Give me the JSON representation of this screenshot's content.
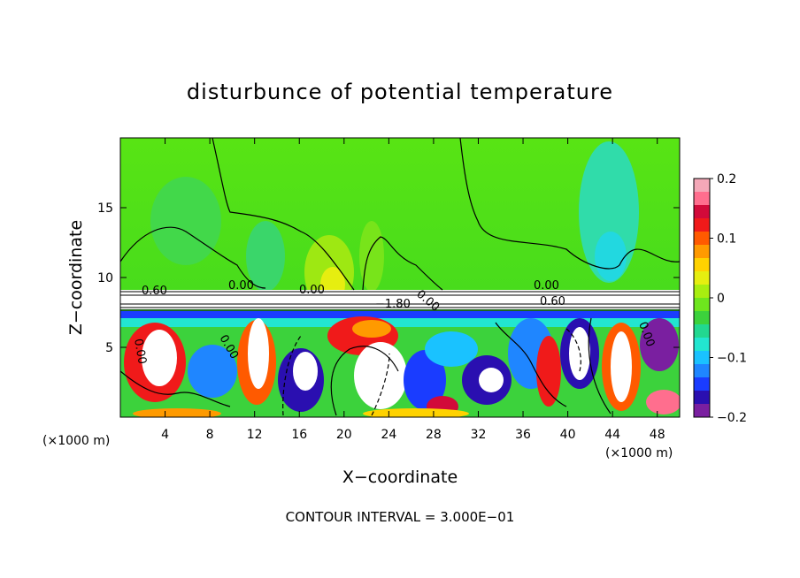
{
  "chart_data": {
    "type": "heatmap",
    "title": "disturbunce of potential temperature",
    "xlabel": "X−coordinate",
    "ylabel": "Z−coordinate",
    "x_unit": "(×1000 m)",
    "x_unit_right": "(×1000 m)",
    "xlim": [
      0,
      50
    ],
    "ylim": [
      0,
      20
    ],
    "x_ticks": [
      4,
      8,
      12,
      16,
      20,
      24,
      28,
      32,
      36,
      40,
      44,
      48
    ],
    "y_ticks": [
      5,
      10,
      15
    ],
    "colorbar": {
      "range": [
        -0.2,
        0.2
      ],
      "tick_values": [
        0.2,
        0.1,
        0,
        -0.1,
        -0.2
      ],
      "tick_labels": [
        "0.2",
        "0.1",
        "0",
        "−0.1",
        "−0.2"
      ],
      "colors": [
        "#7a1fa0",
        "#2a0fb0",
        "#1a3cff",
        "#1f86ff",
        "#1ac2ff",
        "#22e6d0",
        "#22d890",
        "#3cd23c",
        "#6ee61e",
        "#a8ee10",
        "#e6ee10",
        "#ffd200",
        "#ff9a00",
        "#ff5a00",
        "#f01a1a",
        "#d20a3a",
        "#ff6e8e",
        "#f4a8b8"
      ]
    },
    "contour_labels": [
      "0.60",
      "0.00",
      "0.00",
      "−1.80",
      "0.00",
      "0.60",
      "0.00",
      "0.00",
      "0.00",
      "0.00"
    ],
    "footer": "CONTOUR INTERVAL = 3.000E−01"
  }
}
